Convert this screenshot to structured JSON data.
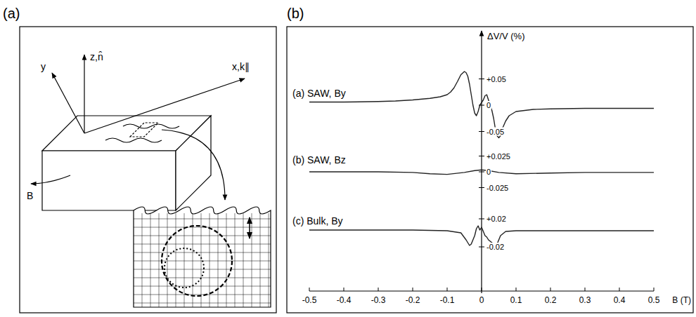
{
  "panels": [
    "(a)",
    "(b)"
  ],
  "diagram": {
    "z_axis": "z,n̂",
    "y_axis": "y",
    "x_axis": "x,k∥",
    "field": "B"
  },
  "chart_data": [
    {
      "type": "line",
      "title": "(a) SAW, By",
      "ylabel": "ΔV/V (%)",
      "color": "#222222",
      "xlim": [
        -0.5,
        0.5
      ],
      "ylim": [
        -0.08,
        0.08
      ],
      "yticks": [
        {
          "value": 0.05,
          "label": "+0.05"
        },
        0,
        -0.05
      ],
      "x": [
        -0.5,
        -0.4,
        -0.3,
        -0.25,
        -0.2,
        -0.15,
        -0.12,
        -0.1,
        -0.09,
        -0.08,
        -0.07,
        -0.06,
        -0.05,
        -0.045,
        -0.04,
        -0.035,
        -0.03,
        -0.025,
        -0.02,
        -0.015,
        -0.01,
        -0.005,
        0,
        0.005,
        0.01,
        0.015,
        0.02,
        0.025,
        0.03,
        0.035,
        0.04,
        0.045,
        0.05,
        0.055,
        0.06,
        0.07,
        0.08,
        0.1,
        0.15,
        0.2,
        0.3,
        0.4,
        0.5
      ],
      "values": [
        0.006,
        0.006,
        0.007,
        0.008,
        0.01,
        0.013,
        0.016,
        0.02,
        0.025,
        0.033,
        0.045,
        0.058,
        0.064,
        0.062,
        0.055,
        0.04,
        0.02,
        0,
        -0.015,
        -0.02,
        -0.012,
        0,
        0.005,
        0.01,
        0.018,
        0.02,
        0.01,
        0,
        -0.01,
        -0.025,
        -0.045,
        -0.058,
        -0.062,
        -0.058,
        -0.045,
        -0.03,
        -0.02,
        -0.012,
        -0.008,
        -0.007,
        -0.006,
        -0.006,
        -0.006
      ]
    },
    {
      "type": "line",
      "title": "(b) SAW, Bz",
      "color": "#222222",
      "xlim": [
        -0.5,
        0.5
      ],
      "ylim": [
        -0.05,
        0.05
      ],
      "yticks": [
        {
          "value": 0.025,
          "label": "+0.025"
        },
        0,
        -0.025
      ],
      "x": [
        -0.5,
        -0.3,
        -0.2,
        -0.15,
        -0.1,
        -0.05,
        -0.02,
        0,
        0.02,
        0.05,
        0.1,
        0.2,
        0.3,
        0.5
      ],
      "values": [
        0,
        0,
        -0.001,
        -0.003,
        -0.004,
        -0.001,
        0.002,
        0.003,
        0.002,
        -0.001,
        -0.003,
        -0.002,
        -0.001,
        -0.001
      ]
    },
    {
      "type": "line",
      "title": "(c) Bulk, By",
      "color": "#222222",
      "xlim": [
        -0.5,
        0.5
      ],
      "ylim": [
        -0.04,
        0.04
      ],
      "yticks": [
        {
          "value": 0.02,
          "label": "+0.02"
        },
        -0.02
      ],
      "xticks": [
        -0.5,
        -0.4,
        -0.3,
        -0.2,
        -0.1,
        0,
        0.1,
        0.2,
        0.3,
        0.4,
        0.5
      ],
      "xlabel": "B (T)",
      "x": [
        -0.5,
        -0.3,
        -0.2,
        -0.1,
        -0.06,
        -0.045,
        -0.035,
        -0.03,
        -0.02,
        -0.015,
        -0.01,
        -0.005,
        0,
        0.005,
        0.01,
        0.015,
        0.02,
        0.03,
        0.038,
        0.045,
        0.055,
        0.07,
        0.1,
        0.3,
        0.5
      ],
      "values": [
        0.004,
        0.004,
        0.004,
        0.003,
        0,
        -0.01,
        -0.018,
        -0.016,
        -0.004,
        0.006,
        0.01,
        0.004,
        0.008,
        0.002,
        -0.004,
        -0.006,
        -0.01,
        -0.014,
        -0.02,
        -0.016,
        -0.004,
        0.002,
        0.003,
        0.003,
        0.003
      ]
    }
  ]
}
